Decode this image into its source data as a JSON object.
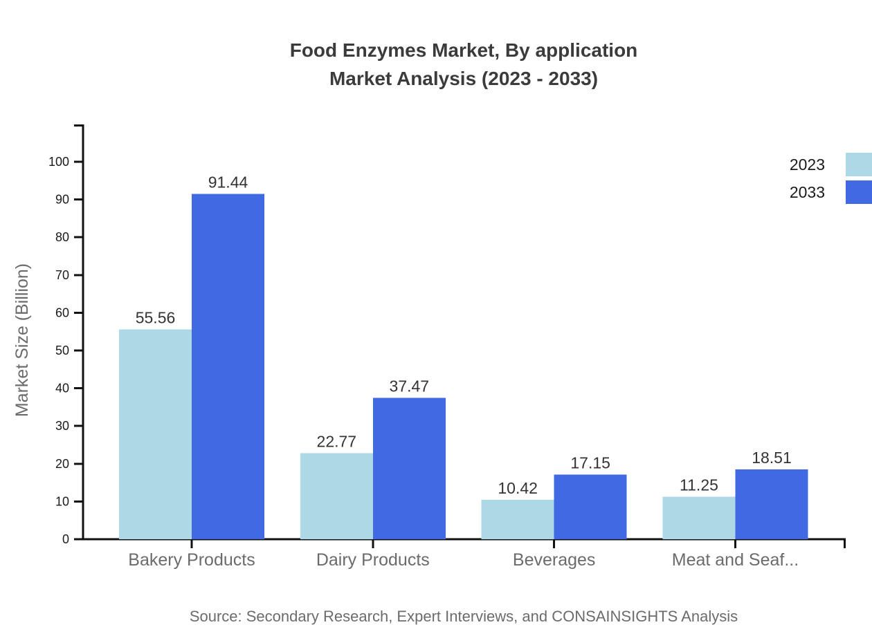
{
  "title": {
    "line1": "Food Enzymes Market, By application",
    "line2": "Market Analysis (2023 - 2033)"
  },
  "legend": [
    {
      "label": "2023",
      "color": "#ADD8E6"
    },
    {
      "label": "2033",
      "color": "#4169E1"
    }
  ],
  "source": "Source: Secondary Research, Expert Interviews, and CONSAINSIGHTS Analysis",
  "chart_data": {
    "type": "bar",
    "title": "Food Enzymes Market, By application Market Analysis (2023 - 2033)",
    "categories": [
      "Bakery Products",
      "Dairy Products",
      "Beverages",
      "Meat and Seaf..."
    ],
    "series": [
      {
        "name": "2023",
        "color": "#ADD8E6",
        "values": [
          55.56,
          22.77,
          10.42,
          11.25
        ]
      },
      {
        "name": "2033",
        "color": "#4169E1",
        "values": [
          91.44,
          37.47,
          17.15,
          18.51
        ]
      }
    ],
    "xlabel": "",
    "ylabel": "Market Size (Billion)",
    "ylim": [
      0,
      100
    ],
    "ytick_step": 10,
    "grid": false,
    "legend_position": "top-right",
    "value_labels": true
  },
  "colors": {
    "axis": "#111111",
    "tick_label": "#1a1a1a",
    "value_label": "#333333",
    "category_label": "#6b6b6b",
    "muted_text": "#6b6b6b",
    "title_text": "#3b3b3b"
  }
}
